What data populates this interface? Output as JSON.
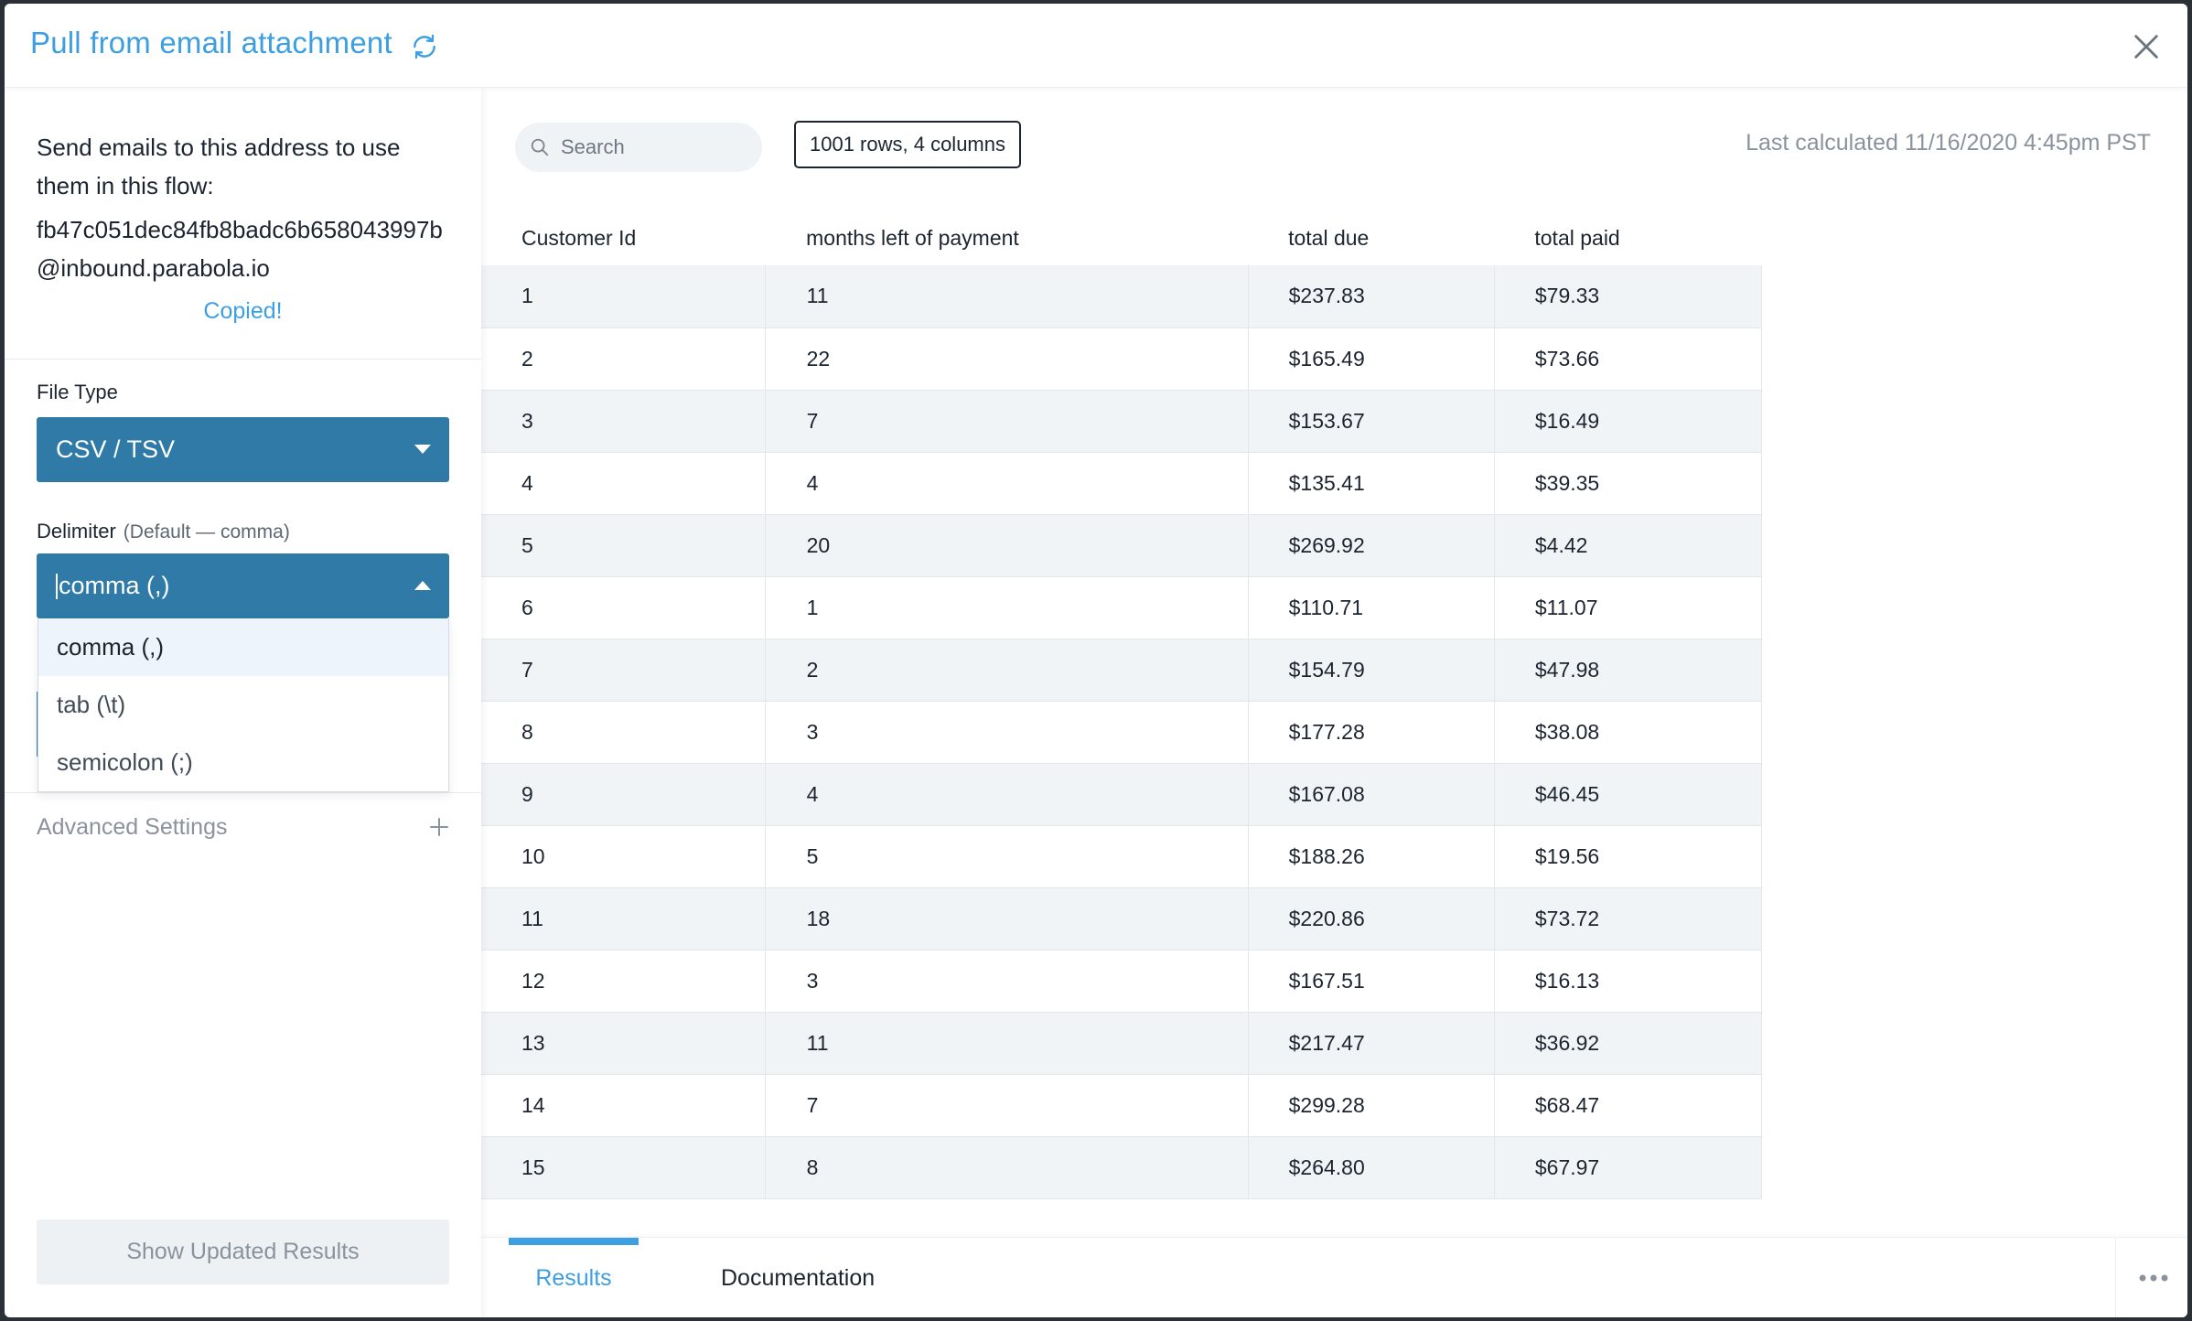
{
  "header": {
    "title": "Pull from email attachment"
  },
  "left": {
    "email_intro": "Send emails to this address to use them in this flow:",
    "email_address": "fb47c051dec84fb8badc6b658043997b@inbound.parabola.io",
    "copied": "Copied!",
    "file_type": {
      "label": "File Type",
      "value": "CSV / TSV"
    },
    "delimiter": {
      "label": "Delimiter",
      "hint": "(Default — comma)",
      "value": "comma (,)",
      "options": [
        "comma (,)",
        "tab (\\t)",
        "semicolon (;)"
      ]
    },
    "advanced_settings": "Advanced Settings",
    "show_results": "Show Updated Results"
  },
  "toolbar": {
    "search_placeholder": "Search",
    "rows_badge": "1001 rows, 4 columns",
    "last_calculated": "Last calculated 11/16/2020 4:45pm PST"
  },
  "table": {
    "columns": [
      "Customer Id",
      "months left of payment",
      "total due",
      "total paid"
    ],
    "rows": [
      [
        "1",
        "11",
        "$237.83",
        "$79.33"
      ],
      [
        "2",
        "22",
        "$165.49",
        "$73.66"
      ],
      [
        "3",
        "7",
        "$153.67",
        "$16.49"
      ],
      [
        "4",
        "4",
        "$135.41",
        "$39.35"
      ],
      [
        "5",
        "20",
        "$269.92",
        "$4.42"
      ],
      [
        "6",
        "1",
        "$110.71",
        "$11.07"
      ],
      [
        "7",
        "2",
        "$154.79",
        "$47.98"
      ],
      [
        "8",
        "3",
        "$177.28",
        "$38.08"
      ],
      [
        "9",
        "4",
        "$167.08",
        "$46.45"
      ],
      [
        "10",
        "5",
        "$188.26",
        "$19.56"
      ],
      [
        "11",
        "18",
        "$220.86",
        "$73.72"
      ],
      [
        "12",
        "3",
        "$167.51",
        "$16.13"
      ],
      [
        "13",
        "11",
        "$217.47",
        "$36.92"
      ],
      [
        "14",
        "7",
        "$299.28",
        "$68.47"
      ],
      [
        "15",
        "8",
        "$264.80",
        "$67.97"
      ]
    ]
  },
  "tabs": {
    "results": "Results",
    "documentation": "Documentation"
  },
  "colors": {
    "accent": "#3d9fe0",
    "select_bg": "#2f7aa6"
  },
  "icons": [
    "refresh-icon",
    "close-icon",
    "search-icon",
    "plus-icon",
    "more-icon",
    "caret-down-icon",
    "caret-up-icon"
  ]
}
